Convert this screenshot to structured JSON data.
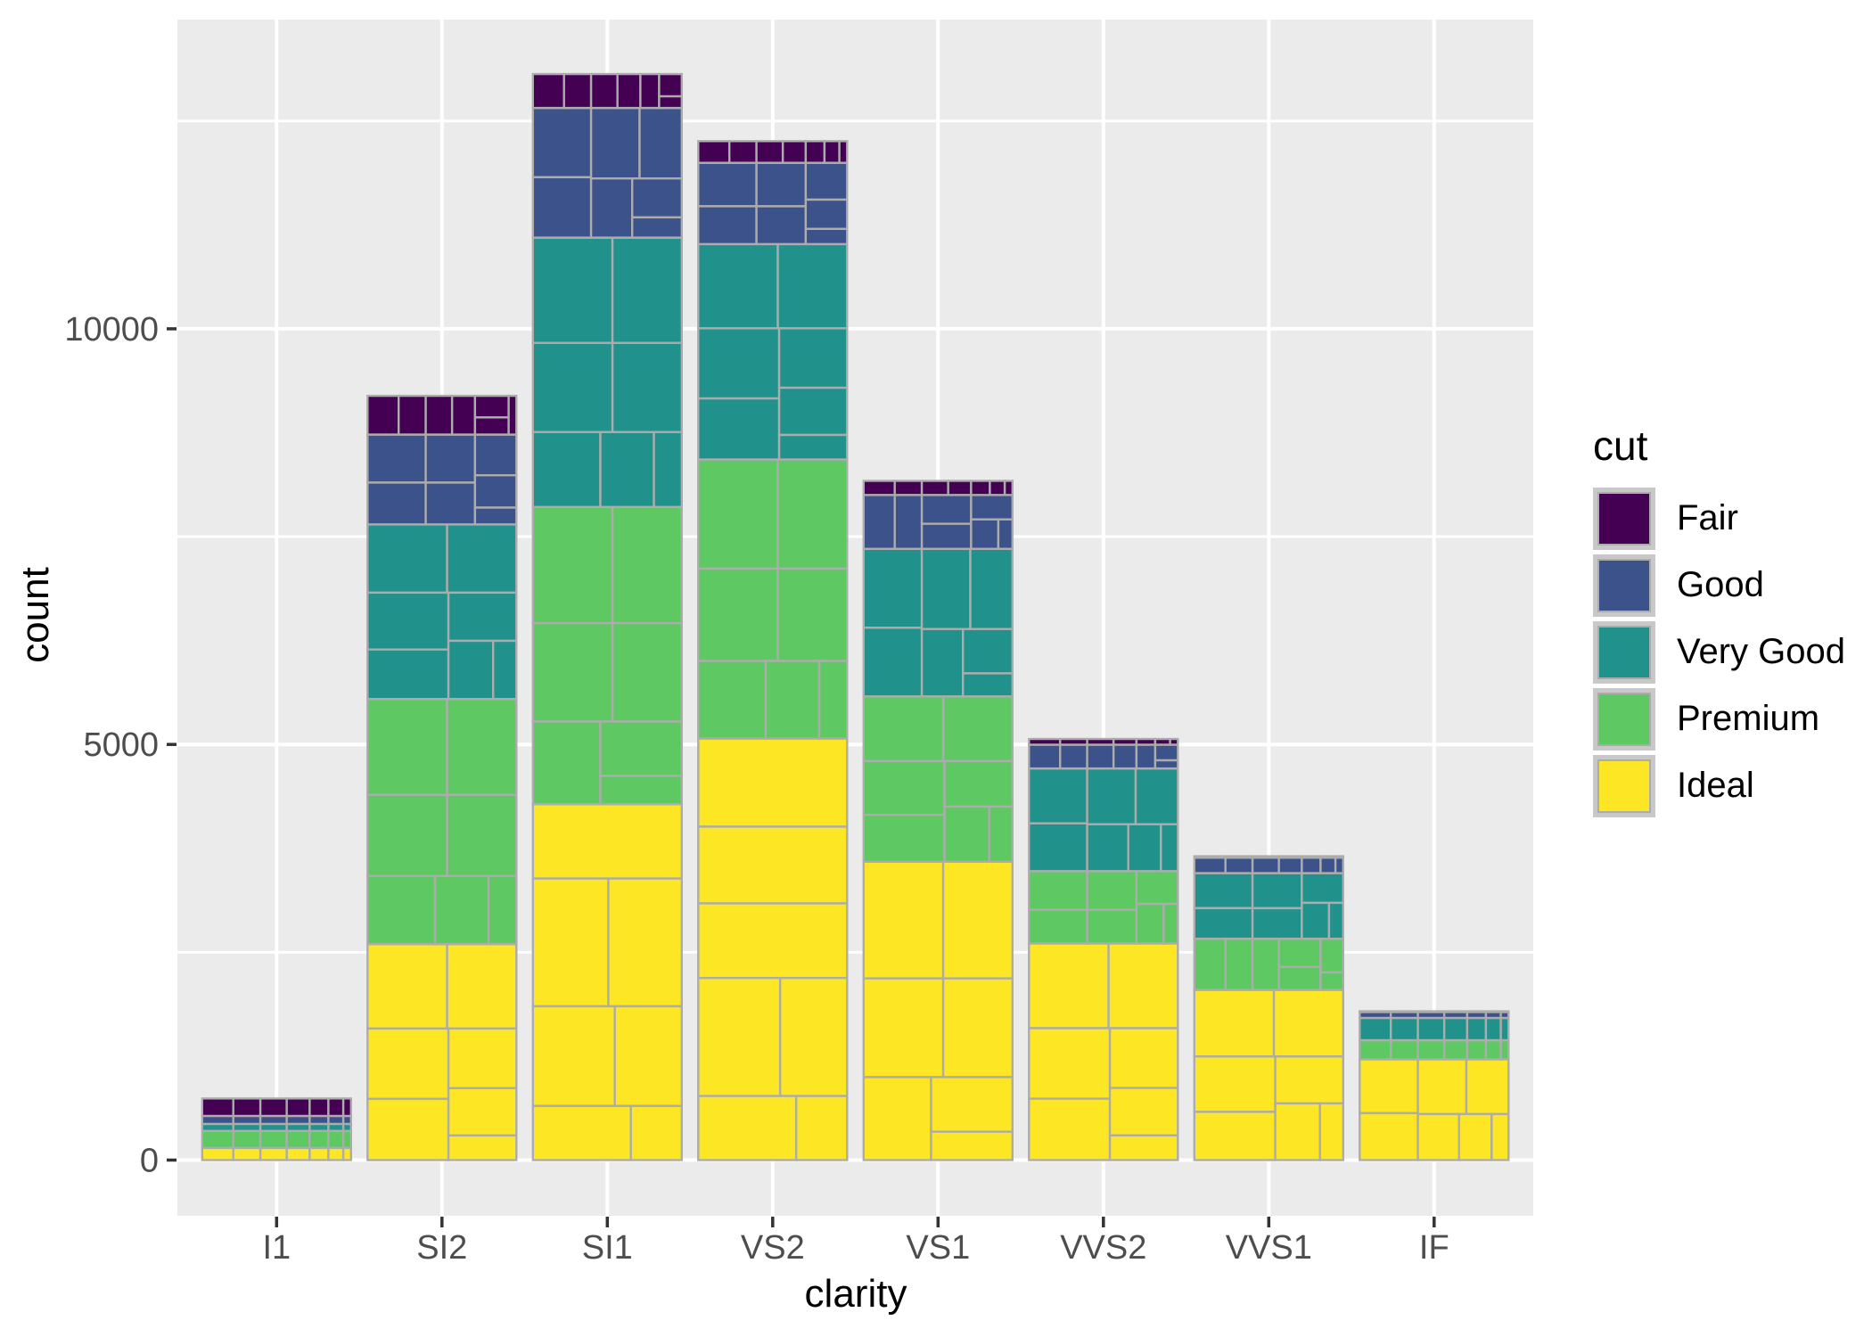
{
  "figure": {
    "background_color": "#FFFFFF"
  },
  "panel": {
    "background_color": "#EBEBEB",
    "grid_major_color": "#FFFFFF",
    "grid_minor_color": "#FFFFFF",
    "cell_border_color": "#ACACAC"
  },
  "axes": {
    "x": {
      "title": "clarity",
      "tick_labels": [
        "I1",
        "SI2",
        "SI1",
        "VS2",
        "VS1",
        "VVS2",
        "VVS1",
        "IF"
      ],
      "tick_color": "#333333",
      "label_color": "#4D4D4D"
    },
    "y": {
      "title": "count",
      "ticks": [
        {
          "value": 0,
          "label": "0"
        },
        {
          "value": 5000,
          "label": "5000"
        },
        {
          "value": 10000,
          "label": "10000"
        }
      ],
      "minor_tick_values": [
        2500,
        7500,
        12500
      ],
      "range": [
        0,
        13776
      ],
      "tick_color": "#333333",
      "label_color": "#4D4D4D"
    }
  },
  "legend": {
    "title": "cut",
    "position": "right",
    "key_frame_color": "#C8C8C8"
  },
  "chart_data": {
    "type": "bar",
    "stacked": true,
    "title": "",
    "xlabel": "clarity",
    "ylabel": "count",
    "categories": [
      "I1",
      "SI2",
      "SI1",
      "VS2",
      "VS1",
      "VVS2",
      "VVS1",
      "IF"
    ],
    "series": [
      {
        "name": "Fair",
        "color": "#440154",
        "values": [
          210,
          466,
          408,
          261,
          170,
          69,
          17,
          9
        ]
      },
      {
        "name": "Good",
        "color": "#3B528B",
        "values": [
          96,
          1081,
          1560,
          978,
          648,
          286,
          186,
          71
        ]
      },
      {
        "name": "Very Good",
        "color": "#21918C",
        "values": [
          84,
          2100,
          3240,
          2591,
          1775,
          1235,
          789,
          268
        ]
      },
      {
        "name": "Premium",
        "color": "#5EC962",
        "values": [
          205,
          2949,
          3575,
          3357,
          1989,
          870,
          616,
          230
        ]
      },
      {
        "name": "Ideal",
        "color": "#FDE725",
        "values": [
          146,
          2598,
          4282,
          5071,
          3589,
          2606,
          2047,
          1212
        ]
      }
    ],
    "category_totals": [
      741,
      9194,
      13065,
      12258,
      8171,
      5066,
      3655,
      1790
    ],
    "stack_order_bottom_to_top": [
      "Ideal",
      "Premium",
      "Very Good",
      "Good",
      "Fair"
    ],
    "segment_subdivision": {
      "cells_per_segment": 7,
      "proportions_estimated": [
        0.209,
        0.182,
        0.177,
        0.154,
        0.126,
        0.1,
        0.052
      ],
      "cell_border_color": "#ACACAC"
    },
    "ylim": [
      0,
      13776
    ],
    "grid": true,
    "legend_position": "right",
    "bar_width_fraction": 0.9
  }
}
